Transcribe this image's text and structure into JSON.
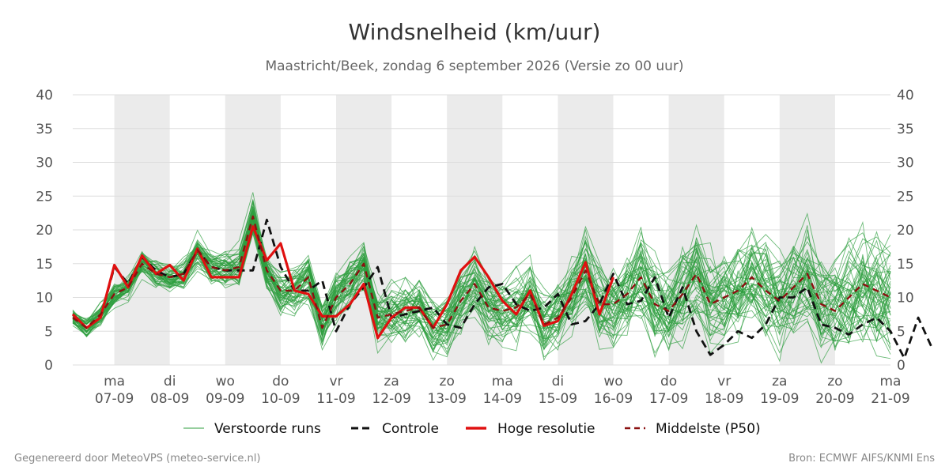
{
  "title": "Windsnelheid (km/uur)",
  "subtitle": "Maastricht/Beek, zondag  6 september 2026 (Versie zo 00 uur)",
  "footer_left": "Gegenereerd door MeteoVPS (meteo-service.nl)",
  "footer_right": "Bron: ECMWF AIFS/KNMI Ens",
  "colors": {
    "ensemble": "#2e9e3e",
    "control": "#111111",
    "highres": "#e01010",
    "median": "#8b1010",
    "shade": "#ebebeb",
    "grid": "#dddddd"
  },
  "chart_data": {
    "type": "line",
    "title": "Windsnelheid (km/uur)",
    "xlabel": "",
    "ylabel": "",
    "ylim": [
      0,
      40
    ],
    "yticks": [
      0,
      5,
      10,
      15,
      20,
      25,
      30,
      35,
      40
    ],
    "grid": true,
    "legend_position": "bottom",
    "x_day_ticks": [
      {
        "day": "ma",
        "date": "07-09"
      },
      {
        "day": "di",
        "date": "08-09"
      },
      {
        "day": "wo",
        "date": "09-09"
      },
      {
        "day": "do",
        "date": "10-09"
      },
      {
        "day": "vr",
        "date": "11-09"
      },
      {
        "day": "za",
        "date": "12-09"
      },
      {
        "day": "zo",
        "date": "13-09"
      },
      {
        "day": "ma",
        "date": "14-09"
      },
      {
        "day": "di",
        "date": "15-09"
      },
      {
        "day": "wo",
        "date": "16-09"
      },
      {
        "day": "do",
        "date": "17-09"
      },
      {
        "day": "vr",
        "date": "18-09"
      },
      {
        "day": "za",
        "date": "19-09"
      },
      {
        "day": "zo",
        "date": "20-09"
      },
      {
        "day": "ma",
        "date": "21-09"
      }
    ],
    "x_start_days": -0.75,
    "x_end_days": 14,
    "step_days": 0.25,
    "shaded_days": [
      0,
      2,
      4,
      6,
      8,
      10,
      12
    ],
    "series": [
      {
        "name": "Verstoorde runs",
        "style": "ensemble",
        "members": 50
      },
      {
        "name": "Controle",
        "style": "dashed",
        "values": [
          7.5,
          5.5,
          7.0,
          14.5,
          12.0,
          16.0,
          14.0,
          13.0,
          13.5,
          17.0,
          14.5,
          14.0,
          14.0,
          14.0,
          21.5,
          14.5,
          11.0,
          11.0,
          12.5,
          5.0,
          9.0,
          11.5,
          14.5,
          7.0,
          7.5,
          8.0,
          8.5,
          6.0,
          5.5,
          9.0,
          11.5,
          12.0,
          9.0,
          8.0,
          8.5,
          10.5,
          6.0,
          6.5,
          9.0,
          13.5,
          9.0,
          9.5,
          13.0,
          7.0,
          11.5,
          5.0,
          1.5,
          3.0,
          5.0,
          4.0,
          6.0,
          10.0,
          10.0,
          11.5,
          6.0,
          5.5,
          4.5,
          6.0,
          7.0,
          5.0,
          1.0,
          7.0,
          2.5
        ]
      },
      {
        "name": "Hoge resolutie",
        "style": "solid",
        "values": [
          7.5,
          5.5,
          7.0,
          14.8,
          11.5,
          16.2,
          13.5,
          14.8,
          12.5,
          17.2,
          13.0,
          13.0,
          13.0,
          20.5,
          15.5,
          18.0,
          11.0,
          10.5,
          7.2,
          7.2,
          9.0,
          12.0,
          4.0,
          7.0,
          8.5,
          8.5,
          5.5,
          9.0,
          14.0,
          16.0,
          13.0,
          9.5,
          7.5,
          11.0,
          5.8,
          6.5,
          10.5,
          15.2,
          7.5,
          13.0
        ]
      },
      {
        "name": "Middelste (P50)",
        "style": "dashed",
        "values": [
          7.0,
          5.5,
          7.5,
          10.5,
          11.5,
          15.0,
          13.5,
          13.0,
          13.5,
          17.0,
          14.5,
          14.0,
          14.5,
          22.0,
          14.0,
          11.0,
          11.0,
          13.0,
          5.5,
          10.0,
          12.0,
          15.0,
          7.0,
          7.5,
          8.0,
          8.5,
          5.5,
          6.0,
          9.5,
          12.0,
          8.5,
          8.0,
          8.5,
          10.5,
          6.0,
          7.0,
          10.0,
          14.0,
          9.0,
          9.0,
          10.5,
          13.0,
          9.0,
          8.0,
          10.5,
          13.5,
          9.0,
          10.0,
          11.0,
          13.0,
          11.0,
          9.5,
          11.5,
          13.5,
          9.0,
          8.0,
          10.0,
          12.0,
          11.0,
          10.0
        ]
      }
    ]
  }
}
